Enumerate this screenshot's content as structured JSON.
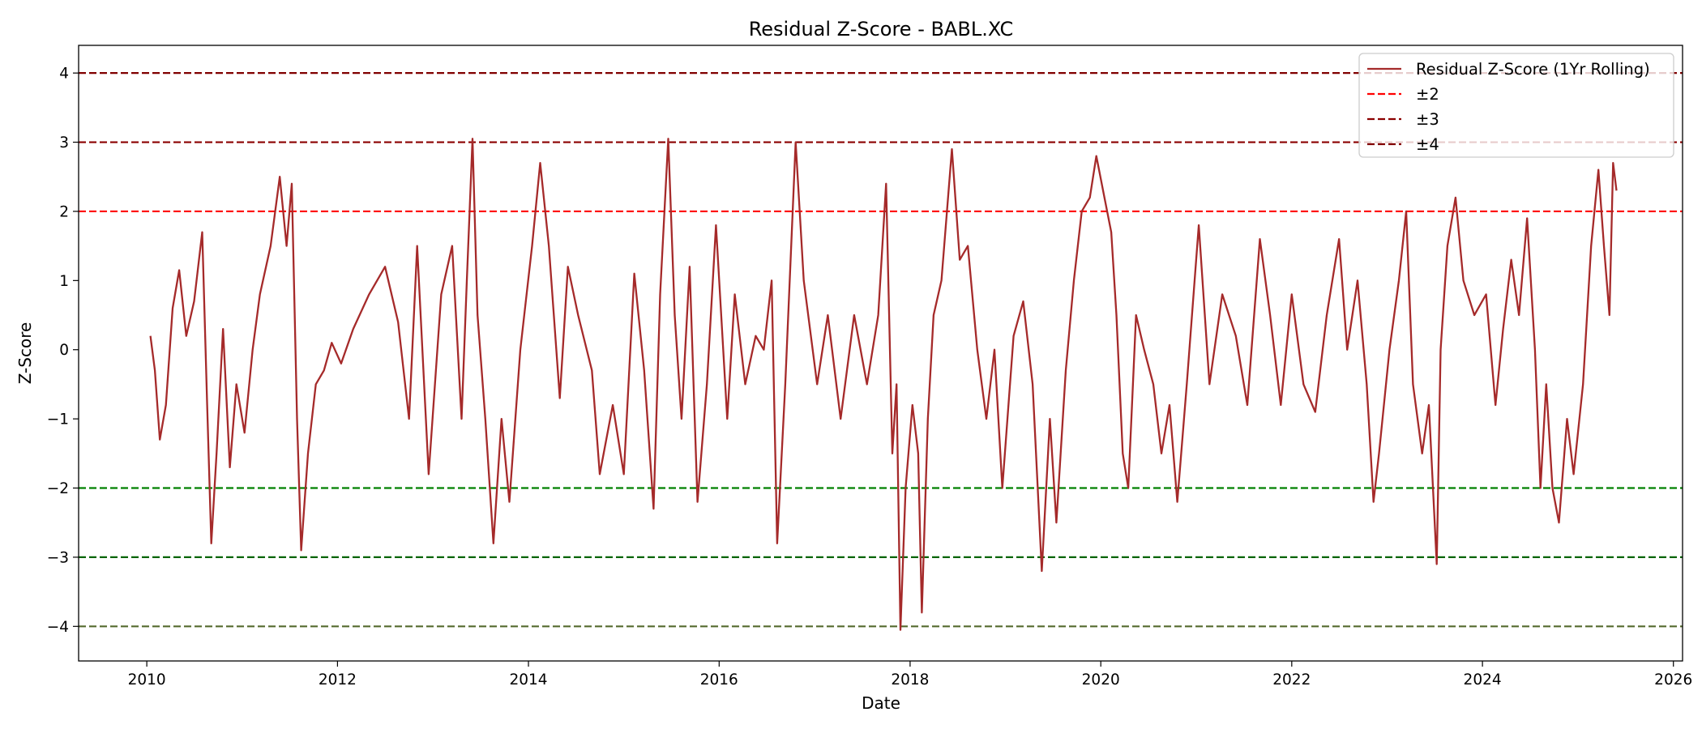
{
  "chart_data": {
    "type": "line",
    "title": "Residual Z-Score - BABL.XC",
    "xlabel": "Date",
    "ylabel": "Z-Score",
    "xlim": [
      "2009-04-15",
      "2026-02-05"
    ],
    "ylim": [
      -4.5,
      4.4
    ],
    "x_ticks": [
      "2010",
      "2012",
      "2014",
      "2016",
      "2018",
      "2020",
      "2022",
      "2024",
      "2026"
    ],
    "y_ticks": [
      "−4",
      "−3",
      "−2",
      "−1",
      "0",
      "1",
      "2",
      "3",
      "4"
    ],
    "grid": false,
    "legend_position": "top-right",
    "series": [
      {
        "name": "Residual Z-Score (1Yr Rolling)",
        "color": "#a52a2a",
        "style": "solid",
        "points": [
          [
            "2010-01-15",
            0.2
          ],
          [
            "2010-02-01",
            -0.3
          ],
          [
            "2010-02-20",
            -1.3
          ],
          [
            "2010-03-15",
            -0.8
          ],
          [
            "2010-04-10",
            0.6
          ],
          [
            "2010-05-05",
            1.15
          ],
          [
            "2010-06-01",
            0.2
          ],
          [
            "2010-07-01",
            0.7
          ],
          [
            "2010-08-01",
            1.7
          ],
          [
            "2010-08-20",
            -0.8
          ],
          [
            "2010-09-05",
            -2.8
          ],
          [
            "2010-09-25",
            -1.5
          ],
          [
            "2010-10-20",
            0.3
          ],
          [
            "2010-11-15",
            -1.7
          ],
          [
            "2010-12-10",
            -0.5
          ],
          [
            "2011-01-10",
            -1.2
          ],
          [
            "2011-02-10",
            0.0
          ],
          [
            "2011-03-10",
            0.8
          ],
          [
            "2011-04-20",
            1.5
          ],
          [
            "2011-05-25",
            2.5
          ],
          [
            "2011-06-20",
            1.5
          ],
          [
            "2011-07-10",
            2.4
          ],
          [
            "2011-07-30",
            -1.0
          ],
          [
            "2011-08-15",
            -2.9
          ],
          [
            "2011-09-10",
            -1.5
          ],
          [
            "2011-10-10",
            -0.5
          ],
          [
            "2011-11-10",
            -0.3
          ],
          [
            "2011-12-10",
            0.1
          ],
          [
            "2012-01-15",
            -0.2
          ],
          [
            "2012-03-01",
            0.3
          ],
          [
            "2012-05-01",
            0.8
          ],
          [
            "2012-07-01",
            1.2
          ],
          [
            "2012-08-20",
            0.4
          ],
          [
            "2012-10-01",
            -1.0
          ],
          [
            "2012-11-01",
            1.5
          ],
          [
            "2012-12-15",
            -1.8
          ],
          [
            "2013-02-01",
            0.8
          ],
          [
            "2013-03-15",
            1.5
          ],
          [
            "2013-04-20",
            -1.0
          ],
          [
            "2013-05-10",
            1.0
          ],
          [
            "2013-06-01",
            3.05
          ],
          [
            "2013-06-20",
            0.5
          ],
          [
            "2013-07-20",
            -1.0
          ],
          [
            "2013-08-20",
            -2.8
          ],
          [
            "2013-09-20",
            -1.0
          ],
          [
            "2013-10-20",
            -2.2
          ],
          [
            "2013-12-01",
            0.0
          ],
          [
            "2014-01-15",
            1.5
          ],
          [
            "2014-02-15",
            2.7
          ],
          [
            "2014-03-20",
            1.5
          ],
          [
            "2014-05-01",
            -0.7
          ],
          [
            "2014-06-01",
            1.2
          ],
          [
            "2014-07-10",
            0.5
          ],
          [
            "2014-09-01",
            -0.3
          ],
          [
            "2014-10-01",
            -1.8
          ],
          [
            "2014-11-20",
            -0.8
          ],
          [
            "2015-01-01",
            -1.8
          ],
          [
            "2015-02-10",
            1.1
          ],
          [
            "2015-03-20",
            -0.3
          ],
          [
            "2015-04-25",
            -2.3
          ],
          [
            "2015-05-20",
            0.8
          ],
          [
            "2015-06-20",
            3.05
          ],
          [
            "2015-07-15",
            0.5
          ],
          [
            "2015-08-10",
            -1.0
          ],
          [
            "2015-09-10",
            1.2
          ],
          [
            "2015-10-10",
            -2.2
          ],
          [
            "2015-11-15",
            -0.5
          ],
          [
            "2015-12-20",
            1.8
          ],
          [
            "2016-02-01",
            -1.0
          ],
          [
            "2016-03-01",
            0.8
          ],
          [
            "2016-04-10",
            -0.5
          ],
          [
            "2016-05-20",
            0.2
          ],
          [
            "2016-06-20",
            0.0
          ],
          [
            "2016-07-20",
            1.0
          ],
          [
            "2016-08-10",
            -2.8
          ],
          [
            "2016-09-10",
            -0.5
          ],
          [
            "2016-10-20",
            3.0
          ],
          [
            "2016-11-20",
            1.0
          ],
          [
            "2017-01-10",
            -0.5
          ],
          [
            "2017-02-20",
            0.5
          ],
          [
            "2017-04-10",
            -1.0
          ],
          [
            "2017-06-01",
            0.5
          ],
          [
            "2017-07-20",
            -0.5
          ],
          [
            "2017-09-01",
            0.5
          ],
          [
            "2017-10-01",
            2.4
          ],
          [
            "2017-10-25",
            -1.5
          ],
          [
            "2017-11-10",
            -0.5
          ],
          [
            "2017-11-25",
            -4.05
          ],
          [
            "2017-12-15",
            -2.0
          ],
          [
            "2018-01-10",
            -0.8
          ],
          [
            "2018-02-01",
            -1.5
          ],
          [
            "2018-02-15",
            -3.8
          ],
          [
            "2018-03-10",
            -1.0
          ],
          [
            "2018-04-01",
            0.5
          ],
          [
            "2018-05-01",
            1.0
          ],
          [
            "2018-06-10",
            2.9
          ],
          [
            "2018-07-10",
            1.3
          ],
          [
            "2018-08-10",
            1.5
          ],
          [
            "2018-09-15",
            0.0
          ],
          [
            "2018-10-20",
            -1.0
          ],
          [
            "2018-11-20",
            0.0
          ],
          [
            "2018-12-20",
            -2.0
          ],
          [
            "2019-02-01",
            0.2
          ],
          [
            "2019-03-10",
            0.7
          ],
          [
            "2019-04-15",
            -0.5
          ],
          [
            "2019-05-20",
            -3.2
          ],
          [
            "2019-06-20",
            -1.0
          ],
          [
            "2019-07-15",
            -2.5
          ],
          [
            "2019-08-20",
            -0.3
          ],
          [
            "2019-09-20",
            1.0
          ],
          [
            "2019-10-20",
            2.0
          ],
          [
            "2019-11-20",
            2.2
          ],
          [
            "2019-12-15",
            2.8
          ],
          [
            "2020-01-15",
            2.2
          ],
          [
            "2020-02-10",
            1.7
          ],
          [
            "2020-03-01",
            0.5
          ],
          [
            "2020-03-25",
            -1.5
          ],
          [
            "2020-04-15",
            -2.0
          ],
          [
            "2020-05-15",
            0.5
          ],
          [
            "2020-06-15",
            0.0
          ],
          [
            "2020-07-20",
            -0.5
          ],
          [
            "2020-08-20",
            -1.5
          ],
          [
            "2020-09-20",
            -0.8
          ],
          [
            "2020-10-20",
            -2.2
          ],
          [
            "2020-11-25",
            -0.5
          ],
          [
            "2021-01-10",
            1.8
          ],
          [
            "2021-02-20",
            -0.5
          ],
          [
            "2021-04-10",
            0.8
          ],
          [
            "2021-06-01",
            0.2
          ],
          [
            "2021-07-15",
            -0.8
          ],
          [
            "2021-09-01",
            1.6
          ],
          [
            "2021-10-10",
            0.5
          ],
          [
            "2021-11-20",
            -0.8
          ],
          [
            "2022-01-01",
            0.8
          ],
          [
            "2022-02-15",
            -0.5
          ],
          [
            "2022-04-01",
            -0.9
          ],
          [
            "2022-05-15",
            0.5
          ],
          [
            "2022-07-01",
            1.6
          ],
          [
            "2022-08-01",
            0.0
          ],
          [
            "2022-09-10",
            1.0
          ],
          [
            "2022-10-15",
            -0.5
          ],
          [
            "2022-11-10",
            -2.2
          ],
          [
            "2022-12-01",
            -1.5
          ],
          [
            "2023-01-10",
            0.0
          ],
          [
            "2023-02-15",
            1.0
          ],
          [
            "2023-03-15",
            2.0
          ],
          [
            "2023-04-10",
            -0.5
          ],
          [
            "2023-05-15",
            -1.5
          ],
          [
            "2023-06-10",
            -0.8
          ],
          [
            "2023-07-10",
            -3.1
          ],
          [
            "2023-07-25",
            0.0
          ],
          [
            "2023-08-20",
            1.5
          ],
          [
            "2023-09-20",
            2.2
          ],
          [
            "2023-10-20",
            1.0
          ],
          [
            "2023-12-01",
            0.5
          ],
          [
            "2024-01-15",
            0.8
          ],
          [
            "2024-02-20",
            -0.8
          ],
          [
            "2024-03-20",
            0.3
          ],
          [
            "2024-04-20",
            1.3
          ],
          [
            "2024-05-20",
            0.5
          ],
          [
            "2024-06-20",
            1.9
          ],
          [
            "2024-07-20",
            0.0
          ],
          [
            "2024-08-10",
            -2.0
          ],
          [
            "2024-09-01",
            -0.5
          ],
          [
            "2024-09-25",
            -2.0
          ],
          [
            "2024-10-20",
            -2.5
          ],
          [
            "2024-11-20",
            -1.0
          ],
          [
            "2024-12-15",
            -1.8
          ],
          [
            "2025-01-20",
            -0.5
          ],
          [
            "2025-02-20",
            1.5
          ],
          [
            "2025-03-20",
            2.6
          ],
          [
            "2025-04-10",
            1.5
          ],
          [
            "2025-05-01",
            0.5
          ],
          [
            "2025-05-15",
            2.7
          ],
          [
            "2025-05-28",
            2.3
          ]
        ]
      },
      {
        "name": "±2",
        "color": "#ff0000",
        "style": "dashed",
        "values": [
          2,
          -2
        ],
        "lower_color": "#008000"
      },
      {
        "name": "±3",
        "color": "#8b0000",
        "style": "dashed",
        "values": [
          3,
          -3
        ],
        "lower_color": "#006400"
      },
      {
        "name": "±4",
        "color": "#800000",
        "style": "dashed",
        "values": [
          4,
          -4
        ],
        "lower_color": "#556b2f"
      }
    ]
  }
}
